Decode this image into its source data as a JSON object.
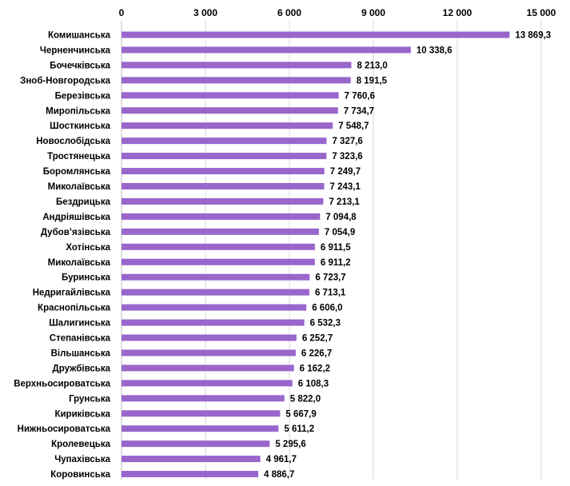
{
  "chart_data": {
    "type": "bar",
    "orientation": "horizontal",
    "title": "",
    "xlabel": "",
    "ylabel": "",
    "xlim": [
      0,
      15000
    ],
    "x_ticks": [
      {
        "value": 0,
        "label": "0"
      },
      {
        "value": 3000,
        "label": "3 000"
      },
      {
        "value": 6000,
        "label": "6 000"
      },
      {
        "value": 9000,
        "label": "9 000"
      },
      {
        "value": 12000,
        "label": "12 000"
      },
      {
        "value": 15000,
        "label": "15 000"
      }
    ],
    "x_axis_position": "top",
    "grid": true,
    "legend": "none",
    "bar_color": "#9966cc",
    "categories": [
      "Комишанська",
      "Черненчинська",
      "Бочечківська",
      "Зноб-Новгородська",
      "Березівська",
      "Миропільська",
      "Шосткинська",
      "Новослобідська",
      "Тростянецька",
      "Боромлянська",
      "Миколаївська",
      "Бездрицька",
      "Андріяшівська",
      "Дубов’язівська",
      "Хотінська",
      "Миколаївська",
      "Буринська",
      "Недригайлівська",
      "Краснопільська",
      "Шалигинська",
      "Степанівська",
      "Вільшанська",
      "Дружбівська",
      "Верхньосироватська",
      "Грунська",
      "Кириківська",
      "Нижньосироватська",
      "Кролевецька",
      "Чупахівська",
      "Коровинська"
    ],
    "values": [
      13869.3,
      10338.6,
      8213.0,
      8191.5,
      7760.6,
      7734.7,
      7548.7,
      7327.6,
      7323.6,
      7249.7,
      7243.1,
      7213.1,
      7094.8,
      7054.9,
      6911.5,
      6911.2,
      6723.7,
      6713.1,
      6606.0,
      6532.3,
      6252.7,
      6226.7,
      6162.2,
      6108.3,
      5822.0,
      5667.9,
      5611.2,
      5295.6,
      4961.7,
      4886.7
    ],
    "value_labels": [
      "13 869,3",
      "10 338,6",
      "8 213,0",
      "8 191,5",
      "7 760,6",
      "7 734,7",
      "7 548,7",
      "7 327,6",
      "7 323,6",
      "7 249,7",
      "7 243,1",
      "7 213,1",
      "7 094,8",
      "7 054,9",
      "6 911,5",
      "6 911,2",
      "6 723,7",
      "6 713,1",
      "6 606,0",
      "6 532,3",
      "6 252,7",
      "6 226,7",
      "6 162,2",
      "6 108,3",
      "5 822,0",
      "5 667,9",
      "5 611,2",
      "5 295,6",
      "4 961,7",
      "4 886,7"
    ]
  }
}
